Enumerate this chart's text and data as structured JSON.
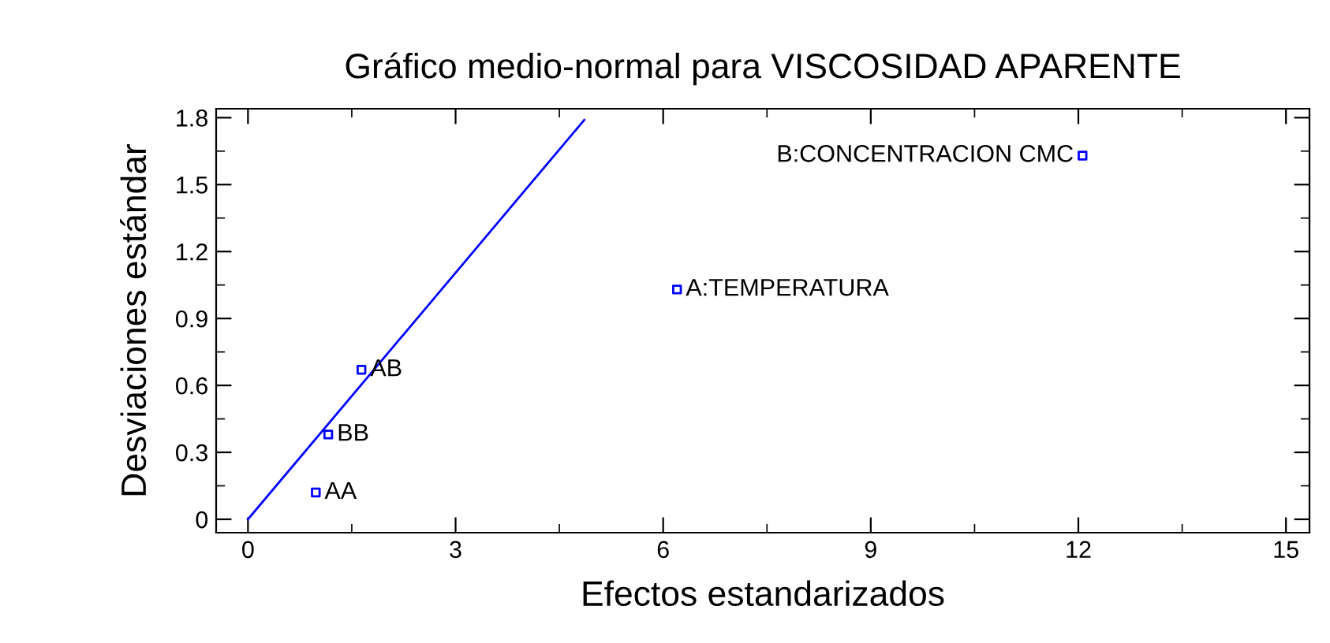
{
  "chart_data": {
    "type": "scatter",
    "title": "Gráfico medio-normal para VISCOSIDAD APARENTE",
    "xlabel": "Efectos estandarizados",
    "ylabel": "Desviaciones estándar",
    "xlim": [
      -0.46,
      15.34
    ],
    "ylim": [
      -0.06,
      1.84
    ],
    "xticks": [
      0,
      3,
      6,
      9,
      12,
      15
    ],
    "yticks": [
      0,
      0.3,
      0.6,
      0.9,
      1.2,
      1.5,
      1.8
    ],
    "grid": false,
    "legend": false,
    "marker": "square",
    "series": [
      {
        "color": "#0000ff",
        "x": [
          0.98,
          1.16,
          1.64,
          6.2,
          12.06
        ],
        "values": [
          0.12,
          0.38,
          0.67,
          1.03,
          1.63
        ]
      },
      {
        "type": "line",
        "color": "#0000ff",
        "x": [
          0,
          4.86
        ],
        "values": [
          0,
          1.79
        ],
        "marker": "none"
      }
    ],
    "annotations": [
      {
        "text": "AA",
        "x": 0.98,
        "y": 0.12
      },
      {
        "text": "BB",
        "x": 1.16,
        "y": 0.38
      },
      {
        "text": "AB",
        "x": 1.64,
        "y": 0.67
      },
      {
        "text": "A:TEMPERATURA",
        "x": 6.2,
        "y": 1.03
      },
      {
        "text": "B:CONCENTRACION CMC",
        "x": 12.06,
        "y": 1.63
      }
    ]
  }
}
